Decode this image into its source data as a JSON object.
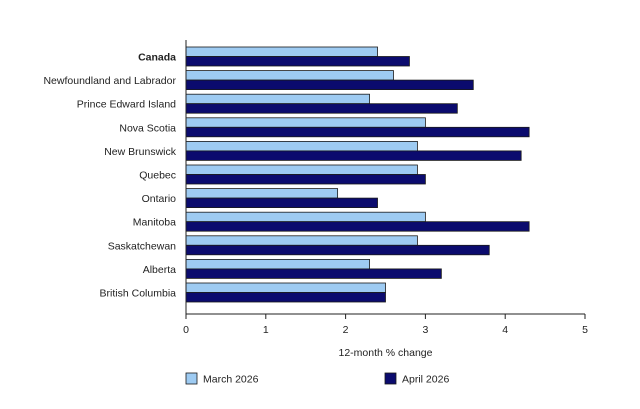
{
  "chart_data": {
    "type": "bar",
    "orientation": "horizontal",
    "title": "",
    "xlabel": "12-month % change",
    "ylabel": "",
    "xlim": [
      0,
      5
    ],
    "x_ticks": [
      "0",
      "1",
      "2",
      "3",
      "4",
      "5"
    ],
    "grid": false,
    "legend_position": "bottom",
    "categories": [
      "Canada",
      "Newfoundland and Labrador",
      "Prince Edward Island",
      "Nova Scotia",
      "New Brunswick",
      "Quebec",
      "Ontario",
      "Manitoba",
      "Saskatchewan",
      "Alberta",
      "British Columbia"
    ],
    "bold_categories": [
      "Canada"
    ],
    "series": [
      {
        "name": "March 2026",
        "color": "#9ecbf2",
        "values": [
          2.4,
          2.6,
          2.3,
          3.0,
          2.9,
          2.9,
          1.9,
          3.0,
          2.9,
          2.3,
          2.5
        ]
      },
      {
        "name": "April 2026",
        "color": "#0b0b6e",
        "values": [
          2.8,
          3.6,
          3.4,
          4.3,
          4.2,
          3.0,
          2.4,
          4.3,
          3.8,
          3.2,
          2.5
        ]
      }
    ]
  }
}
